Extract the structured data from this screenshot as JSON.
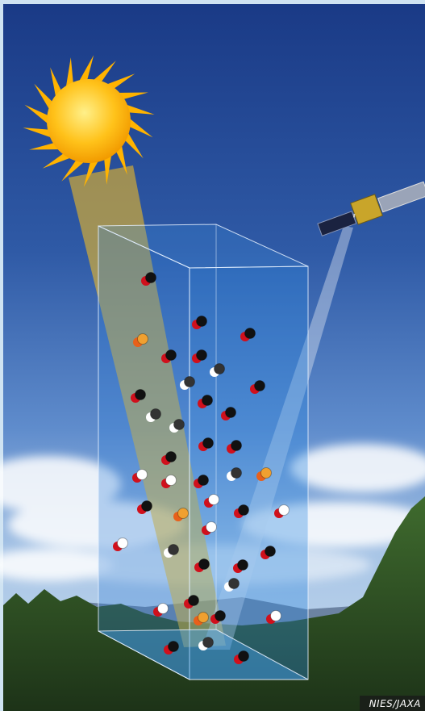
{
  "credit": "NIES/JAXA"
}
